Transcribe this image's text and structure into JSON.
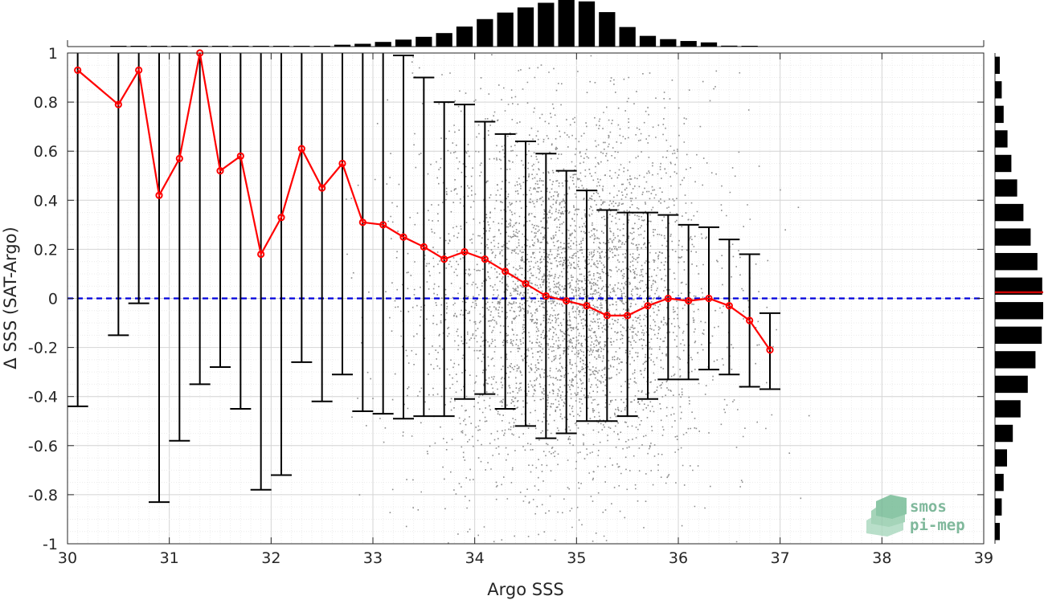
{
  "chart_data": {
    "type": "scatter",
    "title": "",
    "xlabel": "Argo SSS",
    "ylabel": "Δ SSS (SAT-Argo)",
    "xlim": [
      30,
      39
    ],
    "ylim": [
      -1,
      1
    ],
    "xticks": [
      30,
      31,
      32,
      33,
      34,
      35,
      36,
      37,
      38,
      39
    ],
    "yticks": [
      -1,
      -0.8,
      -0.6,
      -0.4,
      -0.2,
      0,
      0.2,
      0.4,
      0.6,
      0.8,
      1
    ],
    "xtick_labels": [
      "30",
      "31",
      "32",
      "33",
      "34",
      "35",
      "36",
      "37",
      "38",
      "39"
    ],
    "ytick_labels": [
      "-1",
      "-0.8",
      "-0.6",
      "-0.4",
      "-0.2",
      "0",
      "0.2",
      "0.4",
      "0.6",
      "0.8",
      "1"
    ],
    "grid": true,
    "zero_line": {
      "y": 0,
      "color": "#0000dd",
      "style": "dashed"
    },
    "scatter": {
      "color": "#8c8c8c",
      "description_center_x": 34.9,
      "center_y": 0.0,
      "x_range": [
        32.6,
        37.4
      ],
      "y_spread": 0.35
    },
    "binned": {
      "color": "#ff0000",
      "errorbar_color": "#000000",
      "x": [
        30.1,
        30.5,
        30.7,
        30.9,
        31.1,
        31.3,
        31.5,
        31.7,
        31.9,
        32.1,
        32.3,
        32.5,
        32.7,
        32.9,
        33.1,
        33.3,
        33.5,
        33.7,
        33.9,
        34.1,
        34.3,
        34.5,
        34.7,
        34.9,
        35.1,
        35.3,
        35.5,
        35.7,
        35.9,
        36.1,
        36.3,
        36.5,
        36.7,
        36.9
      ],
      "mean": [
        0.93,
        0.79,
        0.93,
        0.42,
        0.57,
        1.0,
        0.52,
        0.58,
        0.18,
        0.33,
        0.61,
        0.45,
        0.55,
        0.31,
        0.3,
        0.25,
        0.21,
        0.16,
        0.19,
        0.16,
        0.11,
        0.06,
        0.01,
        -0.01,
        -0.03,
        -0.07,
        -0.07,
        -0.03,
        0.0,
        -0.01,
        0.0,
        -0.03,
        -0.09,
        -0.21
      ],
      "upper": [
        1.0,
        1.0,
        1.0,
        1.0,
        1.0,
        1.0,
        1.0,
        1.0,
        1.0,
        1.0,
        1.0,
        1.0,
        1.0,
        1.0,
        1.0,
        0.99,
        0.9,
        0.8,
        0.79,
        0.72,
        0.67,
        0.64,
        0.59,
        0.52,
        0.44,
        0.36,
        0.35,
        0.35,
        0.34,
        0.3,
        0.29,
        0.24,
        0.18,
        -0.06
      ],
      "lower": [
        -0.44,
        -0.15,
        -0.02,
        -0.83,
        -0.58,
        -0.35,
        -0.28,
        -0.45,
        -0.78,
        -0.72,
        -0.26,
        -0.42,
        -0.31,
        -0.46,
        -0.47,
        -0.49,
        -0.48,
        -0.48,
        -0.41,
        -0.39,
        -0.45,
        -0.52,
        -0.57,
        -0.55,
        -0.5,
        -0.5,
        -0.48,
        -0.41,
        -0.33,
        -0.33,
        -0.29,
        -0.31,
        -0.36,
        -0.37
      ]
    },
    "top_histogram": {
      "color": "#000000",
      "bin_centers": [
        30.1,
        30.3,
        30.5,
        30.7,
        30.9,
        31.1,
        31.3,
        31.5,
        31.7,
        31.9,
        32.1,
        32.3,
        32.5,
        32.7,
        32.9,
        33.1,
        33.3,
        33.5,
        33.7,
        33.9,
        34.1,
        34.3,
        34.5,
        34.7,
        34.9,
        35.1,
        35.3,
        35.5,
        35.7,
        35.9,
        36.1,
        36.3,
        36.5,
        36.7,
        36.9
      ],
      "relative_counts": [
        0.0,
        0.0,
        0.005,
        0.005,
        0.005,
        0.005,
        0.005,
        0.005,
        0.005,
        0.005,
        0.005,
        0.005,
        0.01,
        0.04,
        0.06,
        0.1,
        0.15,
        0.21,
        0.29,
        0.43,
        0.59,
        0.73,
        0.84,
        0.94,
        1.0,
        0.97,
        0.74,
        0.42,
        0.23,
        0.16,
        0.12,
        0.09,
        0.02,
        0.01,
        0.0
      ]
    },
    "right_histogram": {
      "color": "#000000",
      "mean_line_color": "#cc0000",
      "mean_y": 0.025,
      "bin_centers": [
        0.95,
        0.85,
        0.75,
        0.65,
        0.55,
        0.45,
        0.35,
        0.25,
        0.15,
        0.05,
        -0.05,
        -0.15,
        -0.25,
        -0.35,
        -0.45,
        -0.55,
        -0.65,
        -0.75,
        -0.85,
        -0.95
      ],
      "relative_counts": [
        0.1,
        0.14,
        0.18,
        0.26,
        0.34,
        0.46,
        0.59,
        0.74,
        0.88,
        0.98,
        1.0,
        0.97,
        0.84,
        0.68,
        0.53,
        0.37,
        0.25,
        0.18,
        0.14,
        0.1
      ]
    }
  },
  "logo": {
    "line1": "smos",
    "line2": "pi-mep"
  }
}
